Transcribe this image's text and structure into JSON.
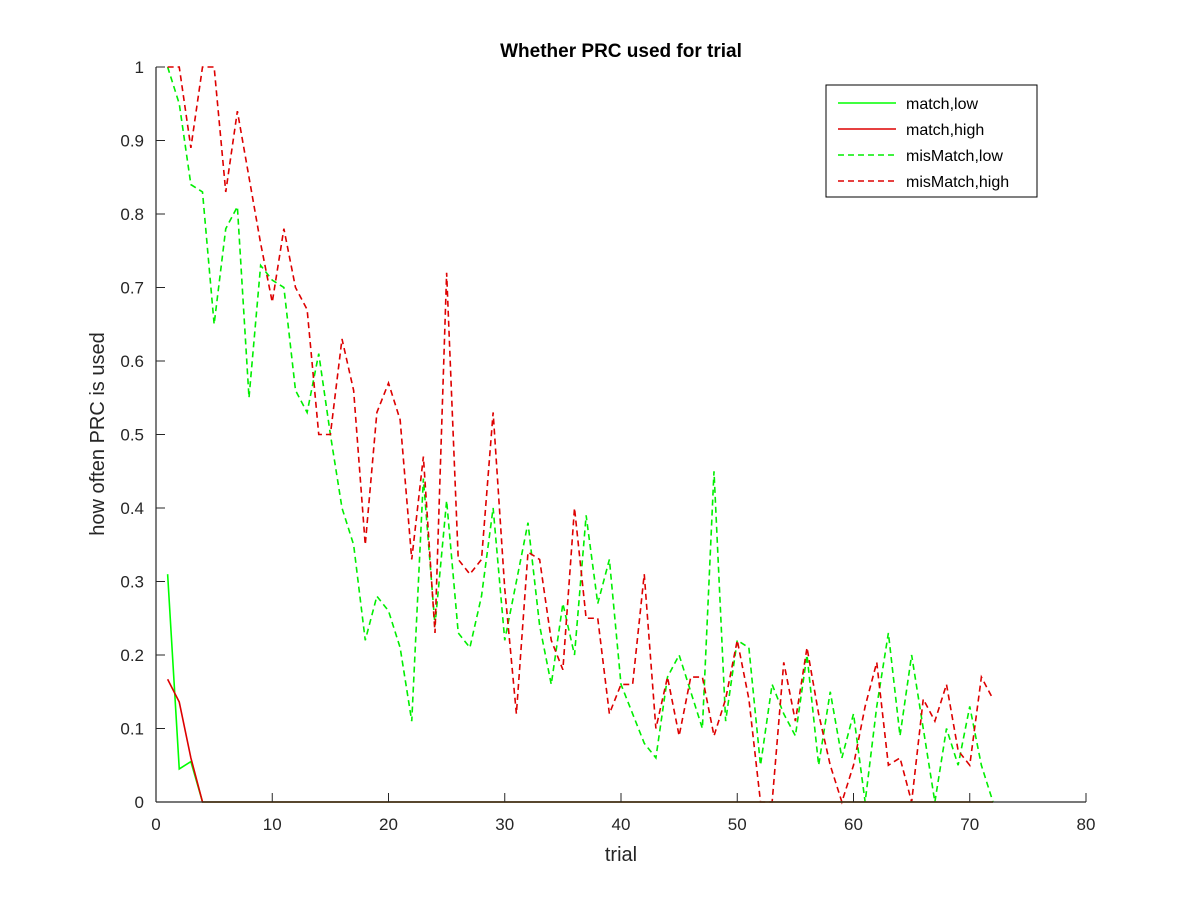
{
  "chart_data": {
    "type": "line",
    "title": "Whether PRC used for trial",
    "xlabel": "trial",
    "ylabel": "how often PRC is used",
    "xlim": [
      0,
      80
    ],
    "ylim": [
      0,
      1
    ],
    "xticks": [
      "0",
      "10",
      "20",
      "30",
      "40",
      "50",
      "60",
      "70",
      "80"
    ],
    "yticks": [
      "0",
      "0.1",
      "0.2",
      "0.3",
      "0.4",
      "0.5",
      "0.6",
      "0.7",
      "0.8",
      "0.9",
      "1"
    ],
    "grid": false,
    "legend_position": "top-right",
    "series": [
      {
        "name": "match,low",
        "color": "#00ff00",
        "dash": "solid",
        "x": [
          1,
          2,
          3,
          4,
          5,
          6,
          7,
          8,
          9,
          10,
          11,
          12,
          13,
          14,
          15,
          16,
          17,
          18,
          19,
          20,
          21,
          22,
          23,
          24,
          25,
          26,
          27,
          28,
          29,
          30,
          31,
          32,
          33,
          34,
          35,
          36,
          37,
          38,
          39,
          40,
          41,
          42,
          43,
          44,
          45,
          46,
          47,
          48,
          49,
          50,
          51,
          52,
          53,
          54,
          55,
          56,
          57,
          58,
          59,
          60,
          61,
          62,
          63,
          64,
          65,
          66,
          67,
          68,
          69,
          70,
          71,
          72
        ],
        "y": [
          0.31,
          0.045,
          0.055,
          0,
          0,
          0,
          0,
          0,
          0,
          0,
          0,
          0,
          0,
          0,
          0,
          0,
          0,
          0,
          0,
          0,
          0,
          0,
          0,
          0,
          0,
          0,
          0,
          0,
          0,
          0,
          0,
          0,
          0,
          0,
          0,
          0,
          0,
          0,
          0,
          0,
          0,
          0,
          0,
          0,
          0,
          0,
          0,
          0,
          0,
          0,
          0,
          0,
          0,
          0,
          0,
          0,
          0,
          0,
          0,
          0,
          0,
          0,
          0,
          0,
          0,
          0,
          0,
          0,
          0,
          0,
          0,
          0
        ]
      },
      {
        "name": "match,high",
        "color": "#dd0000",
        "dash": "solid",
        "x": [
          1,
          2,
          3,
          4,
          5,
          6,
          7,
          8,
          9,
          10,
          11,
          12,
          13,
          14,
          15,
          16,
          17,
          18,
          19,
          20,
          21,
          22,
          23,
          24,
          25,
          26,
          27,
          28,
          29,
          30,
          31,
          32,
          33,
          34,
          35,
          36,
          37,
          38,
          39,
          40,
          41,
          42,
          43,
          44,
          45,
          46,
          47,
          48,
          49,
          50,
          51,
          52,
          53,
          54,
          55,
          56,
          57,
          58,
          59,
          60,
          61,
          62,
          63,
          64,
          65,
          66,
          67,
          68,
          69,
          70,
          71,
          72
        ],
        "y": [
          0.167,
          0.136,
          0.06,
          0,
          0,
          0,
          0,
          0,
          0,
          0,
          0,
          0,
          0,
          0,
          0,
          0,
          0,
          0,
          0,
          0,
          0,
          0,
          0,
          0,
          0,
          0,
          0,
          0,
          0,
          0,
          0,
          0,
          0,
          0,
          0,
          0,
          0,
          0,
          0,
          0,
          0,
          0,
          0,
          0,
          0,
          0,
          0,
          0,
          0,
          0,
          0,
          0,
          0,
          0,
          0,
          0,
          0,
          0,
          0,
          0,
          0,
          0,
          0,
          0,
          0,
          0,
          0,
          0,
          0,
          0,
          0,
          0
        ]
      },
      {
        "name": "misMatch,low",
        "color": "#00ee00",
        "dash": "dashed",
        "x": [
          1,
          2,
          3,
          4,
          5,
          6,
          7,
          8,
          9,
          10,
          11,
          12,
          13,
          14,
          15,
          16,
          17,
          18,
          19,
          20,
          21,
          22,
          23,
          24,
          25,
          26,
          27,
          28,
          29,
          30,
          31,
          32,
          33,
          34,
          35,
          36,
          37,
          38,
          39,
          40,
          41,
          42,
          43,
          44,
          45,
          46,
          47,
          48,
          49,
          50,
          51,
          52,
          53,
          54,
          55,
          56,
          57,
          58,
          59,
          60,
          61,
          62,
          63,
          64,
          65,
          66,
          67,
          68,
          69,
          70,
          71,
          72
        ],
        "y": [
          1.0,
          0.95,
          0.84,
          0.83,
          0.65,
          0.78,
          0.81,
          0.55,
          0.73,
          0.71,
          0.7,
          0.56,
          0.53,
          0.61,
          0.5,
          0.4,
          0.35,
          0.22,
          0.28,
          0.26,
          0.21,
          0.11,
          0.44,
          0.24,
          0.41,
          0.23,
          0.21,
          0.28,
          0.4,
          0.22,
          0.3,
          0.38,
          0.24,
          0.16,
          0.27,
          0.2,
          0.39,
          0.27,
          0.33,
          0.16,
          0.12,
          0.08,
          0.06,
          0.17,
          0.2,
          0.15,
          0.1,
          0.45,
          0.11,
          0.22,
          0.21,
          0.05,
          0.16,
          0.12,
          0.09,
          0.2,
          0.05,
          0.15,
          0.06,
          0.12,
          0,
          0.13,
          0.23,
          0.09,
          0.2,
          0.1,
          0,
          0.1,
          0.05,
          0.13,
          0.05,
          0
        ]
      },
      {
        "name": "misMatch,high",
        "color": "#dd0000",
        "dash": "dashed",
        "x": [
          1,
          2,
          3,
          4,
          5,
          6,
          7,
          8,
          9,
          10,
          11,
          12,
          13,
          14,
          15,
          16,
          17,
          18,
          19,
          20,
          21,
          22,
          23,
          24,
          25,
          26,
          27,
          28,
          29,
          30,
          31,
          32,
          33,
          34,
          35,
          36,
          37,
          38,
          39,
          40,
          41,
          42,
          43,
          44,
          45,
          46,
          47,
          48,
          49,
          50,
          51,
          52,
          53,
          54,
          55,
          56,
          57,
          58,
          59,
          60,
          61,
          62,
          63,
          64,
          65,
          66,
          67,
          68,
          69,
          70,
          71,
          72
        ],
        "y": [
          1.0,
          1.0,
          0.89,
          1.0,
          1.0,
          0.83,
          0.94,
          0.85,
          0.76,
          0.68,
          0.78,
          0.7,
          0.67,
          0.5,
          0.5,
          0.63,
          0.56,
          0.35,
          0.53,
          0.57,
          0.52,
          0.33,
          0.47,
          0.23,
          0.72,
          0.33,
          0.31,
          0.33,
          0.53,
          0.29,
          0.12,
          0.34,
          0.33,
          0.22,
          0.18,
          0.4,
          0.25,
          0.25,
          0.12,
          0.16,
          0.16,
          0.31,
          0.1,
          0.17,
          0.09,
          0.17,
          0.17,
          0.09,
          0.14,
          0.22,
          0.14,
          0,
          0,
          0.19,
          0.11,
          0.21,
          0.12,
          0.05,
          0,
          0.05,
          0.13,
          0.19,
          0.05,
          0.06,
          0,
          0.14,
          0.11,
          0.16,
          0.07,
          0.05,
          0.17,
          0.14
        ]
      }
    ]
  }
}
